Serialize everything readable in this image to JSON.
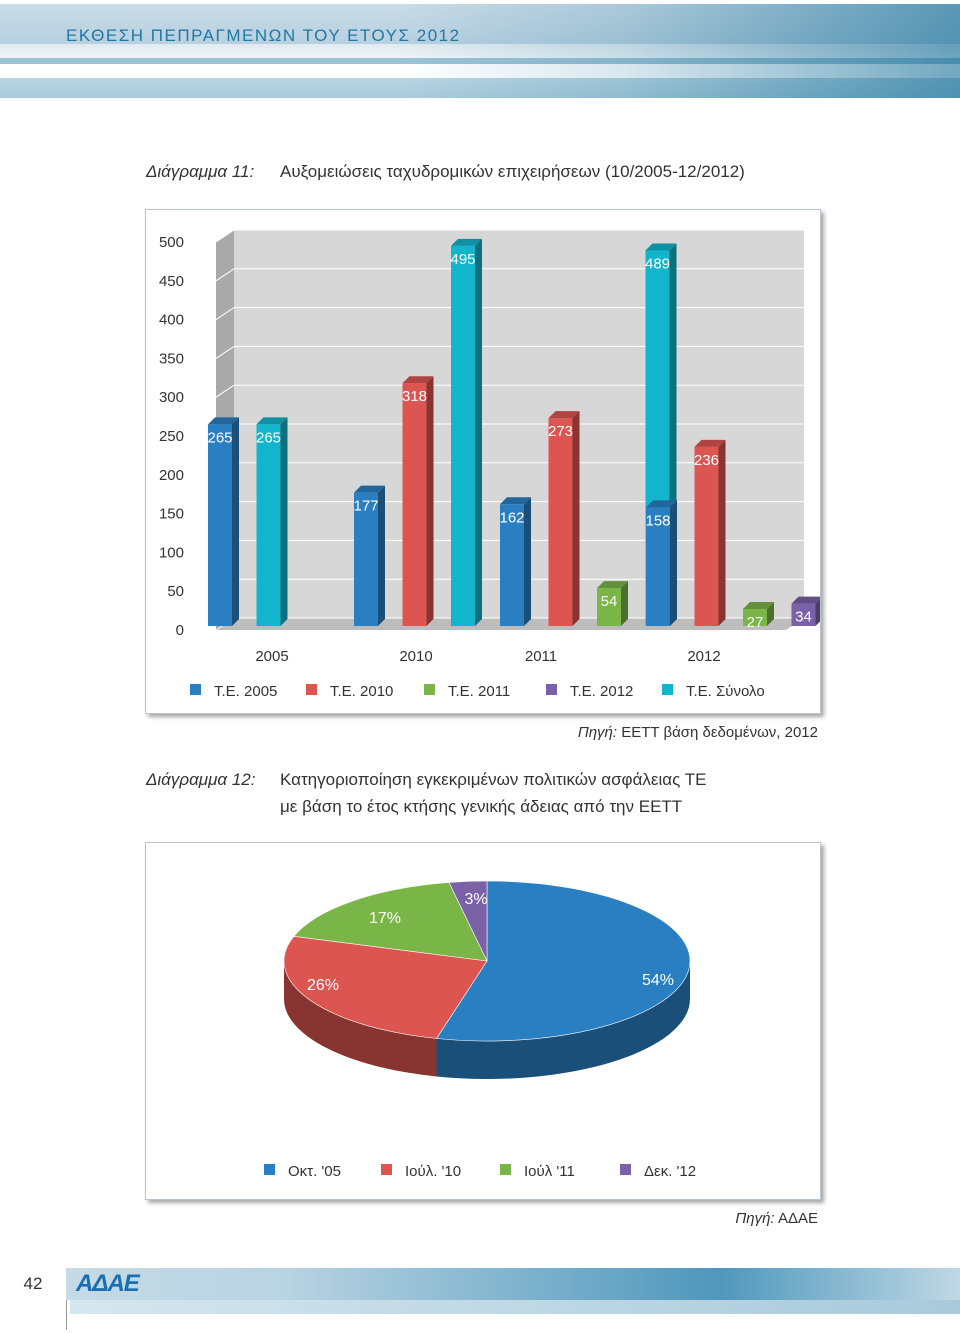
{
  "header": {
    "title": "ΕΚΘΕΣΗ ΠΕΠΡΑΓΜΕΝΩΝ ΤΟΥ ΕΤΟΥΣ 2012"
  },
  "figure11": {
    "label": "Διάγραμμα 11:",
    "title": "Αυξομειώσεις ταχυδρομικών επιχειρήσεων (10/2005-12/2012)",
    "source_label": "Πηγή:",
    "source_text": "ΕΕΤΤ βάση δεδομένων, 2012"
  },
  "figure12": {
    "label": "Διάγραμμα 12:",
    "title_line1": "Κατηγοριοποίηση εγκεκριμένων πολιτικών ασφάλειας ΤΕ",
    "title_line2": "με βάση το έτος κτήσης γενικής άδειας από την ΕΕΤΤ",
    "source_label": "Πηγή:",
    "source_text": "ΑΔΑΕ"
  },
  "chart_data": [
    {
      "type": "bar",
      "categories": [
        "2005",
        "2010",
        "2011",
        "2012"
      ],
      "yticks": [
        "0",
        "50",
        "100",
        "150",
        "200",
        "250",
        "300",
        "350",
        "400",
        "450",
        "500"
      ],
      "ylim": [
        0,
        500
      ],
      "grid": true,
      "legend_position": "bottom",
      "series": [
        {
          "name": "Τ.Ε. 2005",
          "color": "#2a7fc3",
          "values": [
            265,
            177,
            162,
            158
          ]
        },
        {
          "name": "Τ.Ε. 2010",
          "color": "#dc5550",
          "values": [
            null,
            318,
            273,
            236
          ]
        },
        {
          "name": "Τ.Ε. 2011",
          "color": "#7ab547",
          "values": [
            null,
            null,
            54,
            27
          ]
        },
        {
          "name": "Τ.Ε. 2012",
          "color": "#7b62a8",
          "values": [
            null,
            null,
            null,
            34
          ]
        },
        {
          "name": "Τ.Ε. Σύνολο",
          "color": "#12b5cb",
          "values": [
            265,
            495,
            489,
            455
          ]
        }
      ]
    },
    {
      "type": "pie",
      "legend_position": "bottom",
      "labels": [
        "Οκτ. '05",
        "Ιούλ. '10",
        "Ιούλ '11",
        "Δεκ. '12"
      ],
      "values": [
        54,
        26,
        17,
        3
      ],
      "value_labels": [
        "54%",
        "26%",
        "17%",
        "3%"
      ],
      "colors": [
        "#2a7fc3",
        "#dc5550",
        "#7ab547",
        "#7b62a8"
      ]
    }
  ],
  "footer": {
    "page_number": "42",
    "logo": "ΑΔΑΕ"
  }
}
